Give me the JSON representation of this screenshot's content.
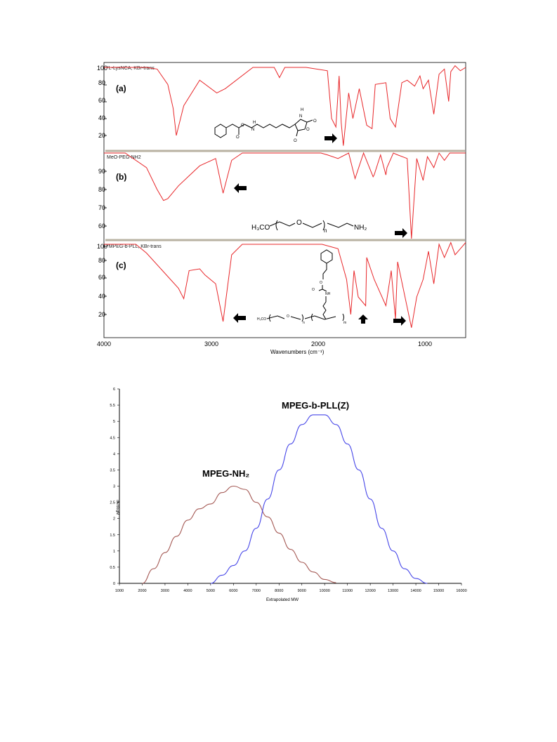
{
  "ftir": {
    "xlabel": "Wavenumbers (cm⁻¹)",
    "x_ticks": [
      "4000",
      "3000",
      "2000",
      "1000"
    ],
    "panels": [
      {
        "label": "(a)",
        "title": "*L-LysNCA, KBr-trans",
        "y_ticks": [
          "100",
          "80",
          "60",
          "40",
          "20"
        ]
      },
      {
        "label": "(b)",
        "title": "MeO-PEG-NH2",
        "y_ticks": [
          "90",
          "80",
          "70",
          "60"
        ]
      },
      {
        "label": "(c)",
        "title": "*MPEG-b-PLL, KBr-trans",
        "y_ticks": [
          "100",
          "80",
          "60",
          "40",
          "20"
        ]
      }
    ],
    "structure_b": {
      "left": "H₃CO",
      "o": "O",
      "n": "n",
      "right": "NH₂"
    },
    "structure_c_left": "H₃CO",
    "structure_c_o": "O",
    "structure_c_n": "n",
    "structure_c_m": "m",
    "structure_c_nh": "NH",
    "structure_c_o2": "O"
  },
  "chart_data": [
    {
      "type": "line",
      "xlabel": "Wavenumbers (cm⁻¹)",
      "xlim": [
        4000,
        600
      ],
      "series": [
        {
          "name": "*L-LysNCA, KBr-trans",
          "x": [
            4000,
            3600,
            3500,
            3400,
            3350,
            3320,
            3250,
            3100,
            2940,
            2860,
            2600,
            2400,
            2350,
            2300,
            2100,
            1900,
            1860,
            1820,
            1790,
            1770,
            1750,
            1700,
            1660,
            1600,
            1530,
            1480,
            1450,
            1350,
            1310,
            1260,
            1200,
            1150,
            1080,
            1030,
            1000,
            950,
            900,
            850,
            800,
            760,
            740,
            700,
            650,
            600
          ],
          "y": [
            100,
            100,
            98,
            80,
            52,
            20,
            55,
            85,
            70,
            75,
            100,
            100,
            88,
            100,
            100,
            96,
            40,
            30,
            90,
            35,
            8,
            70,
            40,
            75,
            32,
            28,
            80,
            82,
            40,
            30,
            82,
            85,
            78,
            90,
            75,
            85,
            45,
            92,
            98,
            60,
            95,
            102,
            96,
            100
          ]
        },
        {
          "name": "MeO-PEG-NH2",
          "x": [
            4000,
            3800,
            3600,
            3500,
            3440,
            3400,
            3300,
            3100,
            2950,
            2880,
            2800,
            2700,
            2500,
            2300,
            2100,
            1960,
            1900,
            1800,
            1700,
            1640,
            1560,
            1470,
            1460,
            1400,
            1350,
            1340,
            1280,
            1240,
            1150,
            1110,
            1060,
            1000,
            960,
            900,
            850,
            800,
            750,
            700,
            650,
            600
          ],
          "y": [
            100,
            100,
            92,
            80,
            74,
            75,
            82,
            93,
            97,
            78,
            96,
            100,
            100,
            100,
            100,
            100,
            99,
            97,
            100,
            86,
            100,
            87,
            88,
            99,
            88,
            92,
            100,
            99,
            97,
            48,
            97,
            85,
            98,
            92,
            100,
            96,
            100,
            100,
            100,
            100
          ]
        },
        {
          "name": "*MPEG-b-PLL, KBr-trans",
          "x": [
            4000,
            3700,
            3600,
            3450,
            3300,
            3250,
            3200,
            3100,
            3050,
            2950,
            2880,
            2800,
            2700,
            2500,
            2200,
            1950,
            1800,
            1720,
            1680,
            1650,
            1610,
            1540,
            1530,
            1460,
            1350,
            1300,
            1260,
            1240,
            1110,
            1060,
            1000,
            950,
            900,
            850,
            800,
            740,
            700,
            650,
            600
          ],
          "y": [
            100,
            100,
            90,
            70,
            50,
            38,
            70,
            72,
            65,
            55,
            12,
            88,
            100,
            100,
            100,
            100,
            95,
            60,
            20,
            70,
            40,
            30,
            85,
            60,
            30,
            70,
            15,
            80,
            5,
            40,
            60,
            92,
            55,
            100,
            85,
            102,
            88,
            95,
            102
          ]
        }
      ]
    },
    {
      "type": "line",
      "xlabel": "Extrapolated MW",
      "ylabel": "dw/dlogM",
      "xlim": [
        1000,
        16000
      ],
      "ylim": [
        0,
        6
      ],
      "x_ticks": [
        "1000",
        "2000",
        "3000",
        "4000",
        "5000",
        "6000",
        "7000",
        "8000",
        "9000",
        "10000",
        "11000",
        "12000",
        "13000",
        "14000",
        "15000",
        "16000"
      ],
      "y_ticks": [
        "0",
        "0.5",
        "1",
        "1.5",
        "2",
        "2.5",
        "3",
        "3.5",
        "4",
        "4.5",
        "5",
        "5.5",
        "6"
      ],
      "series": [
        {
          "name": "MPEG-NH₂",
          "color": "#a55a55",
          "x": [
            2000,
            2500,
            3000,
            3500,
            4000,
            4500,
            5000,
            5500,
            6000,
            6500,
            7000,
            7500,
            8000,
            8500,
            9000,
            9500,
            10000,
            10500
          ],
          "y": [
            0,
            0.45,
            0.95,
            1.45,
            1.95,
            2.3,
            2.45,
            2.8,
            3.0,
            2.9,
            2.5,
            2.05,
            1.55,
            1.05,
            0.65,
            0.35,
            0.12,
            0.02
          ]
        },
        {
          "name": "MPEG-b-PLL(Z)",
          "color": "#4646e8",
          "x": [
            5000,
            5500,
            6000,
            6500,
            7000,
            7500,
            8000,
            8500,
            9000,
            9500,
            10000,
            10500,
            11000,
            11500,
            12000,
            12500,
            13000,
            13500,
            14000,
            14500
          ],
          "y": [
            0,
            0.25,
            0.55,
            1.0,
            1.7,
            2.6,
            3.5,
            4.3,
            4.9,
            5.2,
            5.2,
            4.9,
            4.3,
            3.5,
            2.6,
            1.7,
            1.0,
            0.45,
            0.15,
            0
          ]
        }
      ],
      "annotations": [
        {
          "text": "MPEG-b-PLL(Z)",
          "x": 9800,
          "y": 5.5
        },
        {
          "text": "MPEG-NH₂",
          "x": 6100,
          "y": 3.3
        }
      ]
    }
  ]
}
